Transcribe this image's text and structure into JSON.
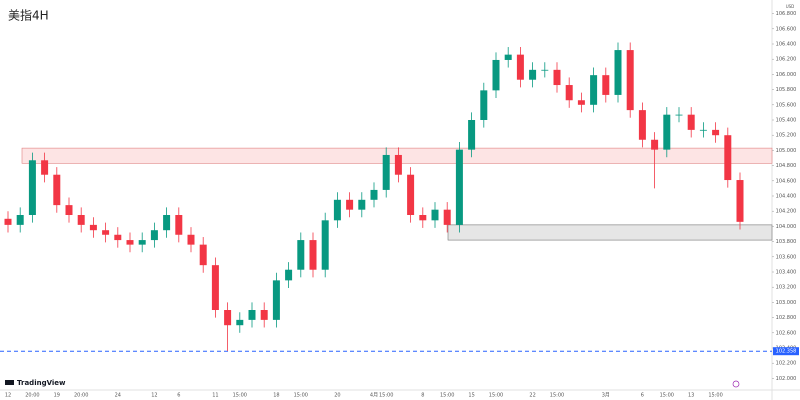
{
  "chart_data": {
    "type": "candlestick",
    "title": "美指4H",
    "currency": "USD",
    "brand": "TradingView",
    "categories": [
      "12",
      null,
      "20:00",
      null,
      "19",
      null,
      "20:00",
      null,
      null,
      "24",
      null,
      null,
      "12",
      null,
      "6",
      null,
      null,
      "11",
      null,
      "15:00",
      null,
      null,
      "18",
      null,
      "15:00",
      null,
      null,
      "20",
      null,
      null,
      "4月",
      "15:00",
      null,
      null,
      "8",
      null,
      "15:00",
      null,
      "15",
      null,
      "15:00",
      null,
      null,
      "22",
      null,
      "15:00",
      null,
      null,
      null,
      "3月",
      null,
      null,
      "6",
      null,
      "15:00",
      null,
      "13",
      null,
      "15:00",
      null,
      null
    ],
    "series": {
      "up_color": "#089981",
      "down_color": "#f23645",
      "open": [
        104.1,
        104.02,
        104.15,
        104.87,
        104.68,
        104.28,
        104.15,
        104.02,
        103.95,
        103.89,
        103.82,
        103.76,
        103.82,
        103.95,
        104.15,
        103.89,
        103.76,
        103.49,
        102.9,
        102.7,
        102.77,
        102.9,
        102.77,
        103.29,
        103.43,
        103.82,
        103.43,
        104.08,
        104.35,
        104.22,
        104.35,
        104.48,
        104.94,
        104.68,
        104.15,
        104.08,
        104.22,
        104.02,
        105.01,
        105.4,
        105.79,
        106.19,
        106.26,
        105.93,
        106.06,
        106.06,
        105.86,
        105.66,
        105.6,
        105.99,
        105.73,
        106.32,
        105.53,
        105.14,
        105.01,
        105.47,
        105.47,
        105.27,
        105.27,
        105.2,
        104.61
      ],
      "high": [
        104.2,
        104.25,
        104.97,
        104.97,
        104.78,
        104.38,
        104.25,
        104.12,
        104.05,
        103.99,
        103.92,
        103.92,
        104.05,
        104.25,
        104.25,
        103.99,
        103.86,
        103.59,
        103.0,
        102.87,
        103.0,
        103.0,
        103.39,
        103.53,
        103.92,
        103.92,
        104.18,
        104.45,
        104.45,
        104.45,
        104.58,
        105.04,
        105.04,
        104.78,
        104.25,
        104.32,
        104.32,
        105.11,
        105.5,
        105.89,
        106.29,
        106.36,
        106.36,
        106.16,
        106.16,
        106.16,
        105.96,
        105.76,
        106.09,
        106.09,
        106.42,
        106.42,
        105.63,
        105.24,
        105.57,
        105.57,
        105.57,
        105.37,
        105.37,
        105.3,
        104.71
      ],
      "low": [
        103.92,
        103.92,
        104.05,
        104.58,
        104.18,
        104.05,
        103.92,
        103.85,
        103.79,
        103.72,
        103.66,
        103.66,
        103.72,
        103.85,
        103.79,
        103.66,
        103.39,
        102.8,
        102.36,
        102.6,
        102.67,
        102.67,
        102.67,
        103.19,
        103.33,
        103.33,
        103.33,
        103.98,
        104.12,
        104.12,
        104.25,
        104.38,
        104.58,
        104.05,
        103.98,
        103.98,
        103.92,
        103.92,
        104.91,
        105.3,
        105.69,
        106.09,
        105.83,
        105.83,
        105.96,
        105.76,
        105.56,
        105.5,
        105.5,
        105.63,
        105.63,
        105.43,
        105.04,
        104.5,
        104.91,
        105.37,
        105.17,
        105.17,
        105.1,
        104.51,
        103.96
      ],
      "close": [
        104.02,
        104.15,
        104.87,
        104.68,
        104.28,
        104.15,
        104.02,
        103.95,
        103.89,
        103.82,
        103.76,
        103.82,
        103.95,
        104.15,
        103.89,
        103.76,
        103.49,
        102.9,
        102.7,
        102.77,
        102.9,
        102.77,
        103.29,
        103.43,
        103.82,
        103.43,
        104.08,
        104.35,
        104.22,
        104.35,
        104.48,
        104.94,
        104.68,
        104.15,
        104.08,
        104.22,
        104.02,
        105.01,
        105.4,
        105.79,
        106.19,
        106.26,
        105.93,
        106.06,
        106.06,
        105.86,
        105.66,
        105.6,
        105.99,
        105.73,
        106.32,
        105.53,
        105.14,
        105.01,
        105.47,
        105.47,
        105.27,
        105.27,
        105.2,
        104.61,
        104.06
      ]
    },
    "zones": [
      {
        "low": 104.83,
        "high": 105.03,
        "fill": "#fde4e4",
        "stroke": "#e08080"
      },
      {
        "low": 103.82,
        "high": 104.02,
        "fill": "#e6e6e6",
        "stroke": "#777777"
      }
    ],
    "hline": {
      "value": 102.358,
      "label": "102.358",
      "color": "#2962ff"
    },
    "ylim": [
      101.9,
      106.9
    ],
    "yticks": [
      {
        "value": 102.0,
        "label": "102.000"
      },
      {
        "value": 102.2,
        "label": "102.200"
      },
      {
        "value": 102.4,
        "label": "102.400"
      },
      {
        "value": 102.6,
        "label": "102.600"
      },
      {
        "value": 102.8,
        "label": "102.800"
      },
      {
        "value": 103.0,
        "label": "103.000"
      },
      {
        "value": 103.2,
        "label": "103.200"
      },
      {
        "value": 103.4,
        "label": "103.400"
      },
      {
        "value": 103.6,
        "label": "103.600"
      },
      {
        "value": 103.8,
        "label": "103.800"
      },
      {
        "value": 104.0,
        "label": "104.000"
      },
      {
        "value": 104.2,
        "label": "104.200"
      },
      {
        "value": 104.4,
        "label": "104.400"
      },
      {
        "value": 104.6,
        "label": "104.600"
      },
      {
        "value": 104.8,
        "label": "104.800"
      },
      {
        "value": 105.0,
        "label": "105.000"
      },
      {
        "value": 105.2,
        "label": "105.200"
      },
      {
        "value": 105.4,
        "label": "105.400"
      },
      {
        "value": 105.6,
        "label": "105.600"
      },
      {
        "value": 105.8,
        "label": "105.800"
      },
      {
        "value": 106.0,
        "label": "106.000"
      },
      {
        "value": 106.2,
        "label": "106.200"
      },
      {
        "value": 106.4,
        "label": "106.400"
      },
      {
        "value": 106.6,
        "label": "106.600"
      },
      {
        "value": 106.8,
        "label": "106.800"
      }
    ]
  }
}
